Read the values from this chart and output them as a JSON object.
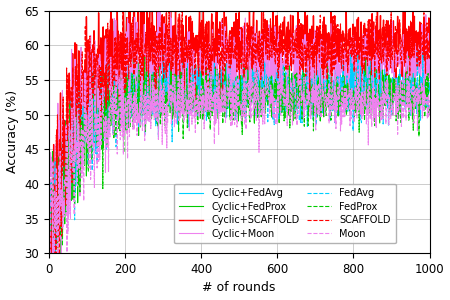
{
  "xlabel": "# of rounds",
  "ylabel": "Accuracy (%)",
  "xlim": [
    0,
    1000
  ],
  "ylim": [
    30,
    65
  ],
  "yticks": [
    30,
    35,
    40,
    45,
    50,
    55,
    60,
    65
  ],
  "xticks": [
    0,
    200,
    400,
    600,
    800,
    1000
  ],
  "series": [
    {
      "name": "Cyclic+FedAvg",
      "color": "#00CFFF",
      "linestyle": "solid",
      "linewidth": 0.8,
      "start": 30,
      "plateau": 54.0,
      "rise_tau": 60,
      "noise_hi": 3.0,
      "noise_lo": 1.8,
      "seed": 1
    },
    {
      "name": "Cyclic+FedProx",
      "color": "#00CC00",
      "linestyle": "solid",
      "linewidth": 0.8,
      "start": 30,
      "plateau": 53.5,
      "rise_tau": 60,
      "noise_hi": 3.0,
      "noise_lo": 1.8,
      "seed": 2
    },
    {
      "name": "Cyclic+SCAFFOLD",
      "color": "#FF0000",
      "linestyle": "solid",
      "linewidth": 1.0,
      "start": 30,
      "plateau": 60.5,
      "rise_tau": 55,
      "noise_hi": 3.5,
      "noise_lo": 2.2,
      "seed": 3
    },
    {
      "name": "Cyclic+Moon",
      "color": "#EE82EE",
      "linestyle": "solid",
      "linewidth": 0.8,
      "start": 30,
      "plateau": 57.5,
      "rise_tau": 65,
      "noise_hi": 4.0,
      "noise_lo": 2.5,
      "seed": 4
    },
    {
      "name": "FedAvg",
      "color": "#00CFFF",
      "linestyle": "dashed",
      "linewidth": 0.8,
      "start": 30,
      "plateau": 53.2,
      "rise_tau": 65,
      "noise_hi": 2.8,
      "noise_lo": 1.8,
      "seed": 5
    },
    {
      "name": "FedProx",
      "color": "#00CC00",
      "linestyle": "dashed",
      "linewidth": 0.8,
      "start": 30,
      "plateau": 52.5,
      "rise_tau": 65,
      "noise_hi": 2.8,
      "noise_lo": 1.8,
      "seed": 6
    },
    {
      "name": "SCAFFOLD",
      "color": "#FF0000",
      "linestyle": "dashed",
      "linewidth": 0.8,
      "start": 30,
      "plateau": 59.5,
      "rise_tau": 60,
      "noise_hi": 3.5,
      "noise_lo": 2.2,
      "seed": 7
    },
    {
      "name": "Moon",
      "color": "#EE82EE",
      "linestyle": "dashed",
      "linewidth": 0.8,
      "start": 30,
      "plateau": 52.0,
      "rise_tau": 70,
      "noise_hi": 3.5,
      "noise_lo": 2.0,
      "seed": 8
    }
  ],
  "figsize": [
    4.5,
    3.0
  ],
  "dpi": 100
}
